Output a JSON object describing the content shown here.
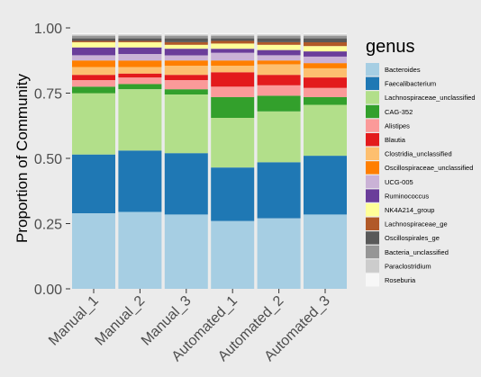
{
  "chart_data": {
    "type": "bar",
    "stacked": true,
    "ylabel": "Proportion of Community",
    "xlabel": "",
    "ylim": [
      0,
      1
    ],
    "yticks": [
      "0.00",
      "0.25",
      "0.50",
      "0.75",
      "1.00"
    ],
    "ytick_values": [
      0,
      0.25,
      0.5,
      0.75,
      1
    ],
    "categories": [
      "Manual_1",
      "Manual_2",
      "Manual_3",
      "Automated_1",
      "Automated_2",
      "Automated_3"
    ],
    "legend_title": "genus",
    "legend_position": "right",
    "grid": false,
    "series": [
      {
        "name": "Bacteroides",
        "color": "#a6cee3",
        "values": [
          0.29,
          0.295,
          0.285,
          0.26,
          0.27,
          0.285
        ]
      },
      {
        "name": "Faecalibacterium",
        "color": "#1f78b4",
        "values": [
          0.225,
          0.235,
          0.235,
          0.205,
          0.215,
          0.225
        ]
      },
      {
        "name": "Lachnospiraceae_unclassified",
        "color": "#b2df8a",
        "values": [
          0.235,
          0.235,
          0.225,
          0.19,
          0.195,
          0.195
        ]
      },
      {
        "name": "CAG-352",
        "color": "#33a02c",
        "values": [
          0.025,
          0.02,
          0.02,
          0.08,
          0.06,
          0.03
        ]
      },
      {
        "name": "Alistipes",
        "color": "#fb9a99",
        "values": [
          0.025,
          0.025,
          0.035,
          0.04,
          0.04,
          0.035
        ]
      },
      {
        "name": "Blautia",
        "color": "#e31a1c",
        "values": [
          0.02,
          0.015,
          0.02,
          0.055,
          0.04,
          0.04
        ]
      },
      {
        "name": "Clostridia_unclassified",
        "color": "#fdbf6f",
        "values": [
          0.03,
          0.025,
          0.035,
          0.025,
          0.04,
          0.035
        ]
      },
      {
        "name": "Oscillospiraceae_unclassified",
        "color": "#ff7f00",
        "values": [
          0.025,
          0.025,
          0.02,
          0.02,
          0.015,
          0.02
        ]
      },
      {
        "name": "UCG-005",
        "color": "#cab2d6",
        "values": [
          0.02,
          0.025,
          0.02,
          0.03,
          0.02,
          0.025
        ]
      },
      {
        "name": "Ruminococcus",
        "color": "#6a3d9a",
        "values": [
          0.03,
          0.025,
          0.025,
          0.015,
          0.02,
          0.02
        ]
      },
      {
        "name": "NK4A214_group",
        "color": "#ffff99",
        "values": [
          0.02,
          0.02,
          0.015,
          0.02,
          0.02,
          0.02
        ]
      },
      {
        "name": "Lachnospiraceae_ge",
        "color": "#b15928",
        "values": [
          0.005,
          0.005,
          0.01,
          0.01,
          0.01,
          0.015
        ]
      },
      {
        "name": "Oscillospirales_ge",
        "color": "#595959",
        "values": [
          0.01,
          0.01,
          0.015,
          0.01,
          0.015,
          0.015
        ]
      },
      {
        "name": "Bacteria_unclassified",
        "color": "#969696",
        "values": [
          0.01,
          0.01,
          0.01,
          0.01,
          0.01,
          0.01
        ]
      },
      {
        "name": "Paraclostridium",
        "color": "#cccccc",
        "values": [
          0.005,
          0.005,
          0.005,
          0.005,
          0.005,
          0.005
        ]
      },
      {
        "name": "Roseburia",
        "color": "#f7f7f7",
        "values": [
          0.005,
          0.005,
          0.005,
          0.005,
          0.005,
          0.005
        ]
      }
    ]
  }
}
